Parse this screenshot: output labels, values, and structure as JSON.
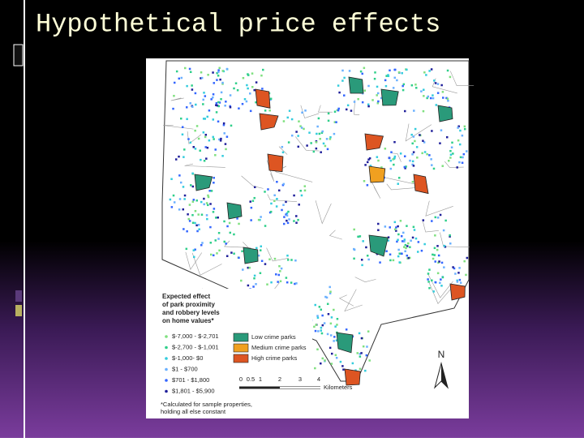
{
  "title": "Hypothetical price effects",
  "map": {
    "legend": {
      "title": [
        "Expected effect",
        "of park proximity",
        "and robbery levels",
        "on home values*"
      ],
      "values": [
        "$-7,000 - $-2,701",
        "$-2,700 - $-1,001",
        "$-1,000- $0",
        "$1 - $700",
        "$701 - $1,800",
        "$1,801 - $5,900"
      ],
      "parks": [
        "Low crime parks",
        "Medium crime parks",
        "High crime parks"
      ]
    },
    "scale": {
      "ticks": [
        "0",
        "0.5",
        "1",
        "2",
        "3",
        "4"
      ],
      "unit": "Kilometers"
    },
    "north": "N",
    "footnote": [
      "*Calculated for sample properties,",
      "holding all else constant"
    ]
  }
}
